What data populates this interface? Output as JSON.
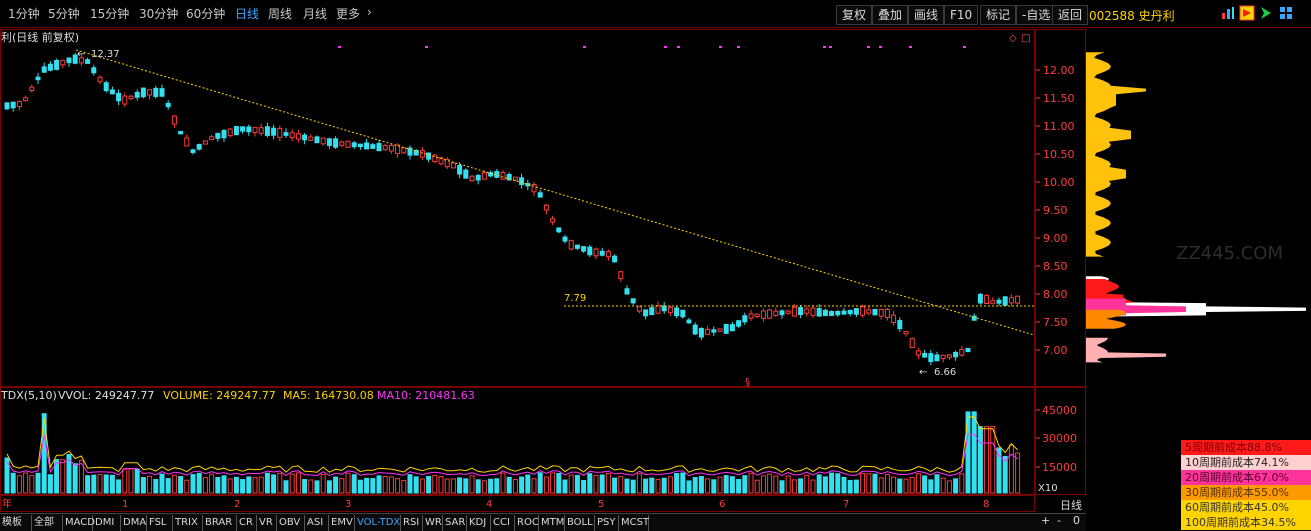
{
  "toolbar": {
    "periods": [
      "1分钟",
      "5分钟",
      "15分钟",
      "30分钟",
      "60分钟",
      "日线",
      "周线",
      "月线",
      "更多"
    ],
    "active_period": "日线",
    "more_arrow": "›",
    "buttons": [
      "复权",
      "叠加",
      "画线",
      "F10",
      "标记",
      "-自选",
      "返回"
    ],
    "stock_code": "002588 史丹利",
    "icons": [
      "bar-chart-icon",
      "flag-icon",
      "play-icon",
      "grid-icon"
    ]
  },
  "price_panel": {
    "title": "利(日线 前复权)",
    "high_label": "12.37",
    "low_label": "6.66",
    "support_label": "7.79",
    "marker": "§",
    "corner_icons": [
      "◇",
      "□"
    ],
    "axis_ticks": [
      "12.00",
      "11.50",
      "11.00",
      "10.50",
      "10.00",
      "9.50",
      "9.00",
      "8.50",
      "8.00",
      "7.50",
      "7.00"
    ]
  },
  "volume_panel": {
    "legend": [
      {
        "text": "TDX(5,10)",
        "color": "#e0e0e0"
      },
      {
        "text": "VVOL: 249247.77",
        "color": "#e0e0e0"
      },
      {
        "text": "VOLUME: 249247.77",
        "color": "#ffd400"
      },
      {
        "text": "MA5: 164730.08",
        "color": "#ffd400"
      },
      {
        "text": "MA10: 210481.63",
        "color": "#ff33ff"
      }
    ],
    "axis_ticks": [
      "45000",
      "30000",
      "15000"
    ],
    "unit": "X10"
  },
  "x_axis": {
    "year_label": "年",
    "months": [
      "1",
      "2",
      "3",
      "4",
      "5",
      "6",
      "7",
      "8"
    ],
    "period_label": "日线"
  },
  "bottom_tabs": [
    "模板",
    "全部",
    "MACD",
    "DMI",
    "DMA",
    "FSL",
    "TRIX",
    "BRAR",
    "CR",
    "VR",
    "OBV",
    "ASI",
    "EMV",
    "VOL-TDX",
    "RSI",
    "WR",
    "SAR",
    "KDJ",
    "CCI",
    "ROC",
    "MTM",
    "BOLL",
    "PSY",
    "MCST"
  ],
  "active_tab": "VOL-TDX",
  "chip_legend": [
    {
      "text": "5周期前成本88.8%",
      "bg": "#ff1a1a",
      "fg": "#7a0000"
    },
    {
      "text": "10周期前成本74.1%",
      "bg": "#ffd0d0",
      "fg": "#222"
    },
    {
      "text": "20周期前成本67.0%",
      "bg": "#ff3399",
      "fg": "#5a0030"
    },
    {
      "text": "30周期前成本55.0%",
      "bg": "#ff9900",
      "fg": "#553300"
    },
    {
      "text": "60周期前成本45.0%",
      "bg": "#ffd400",
      "fg": "#333"
    },
    {
      "text": "100周期前成本34.5%",
      "bg": "#ffd400",
      "fg": "#333"
    }
  ],
  "corner_controls": [
    "+",
    "-",
    "0"
  ],
  "watermark": "ZZ445.COM",
  "colors": {
    "up": "#ff3b3b",
    "down": "#33e0f0",
    "accent": "#3aa7ff",
    "frame": "#7a0000"
  }
}
